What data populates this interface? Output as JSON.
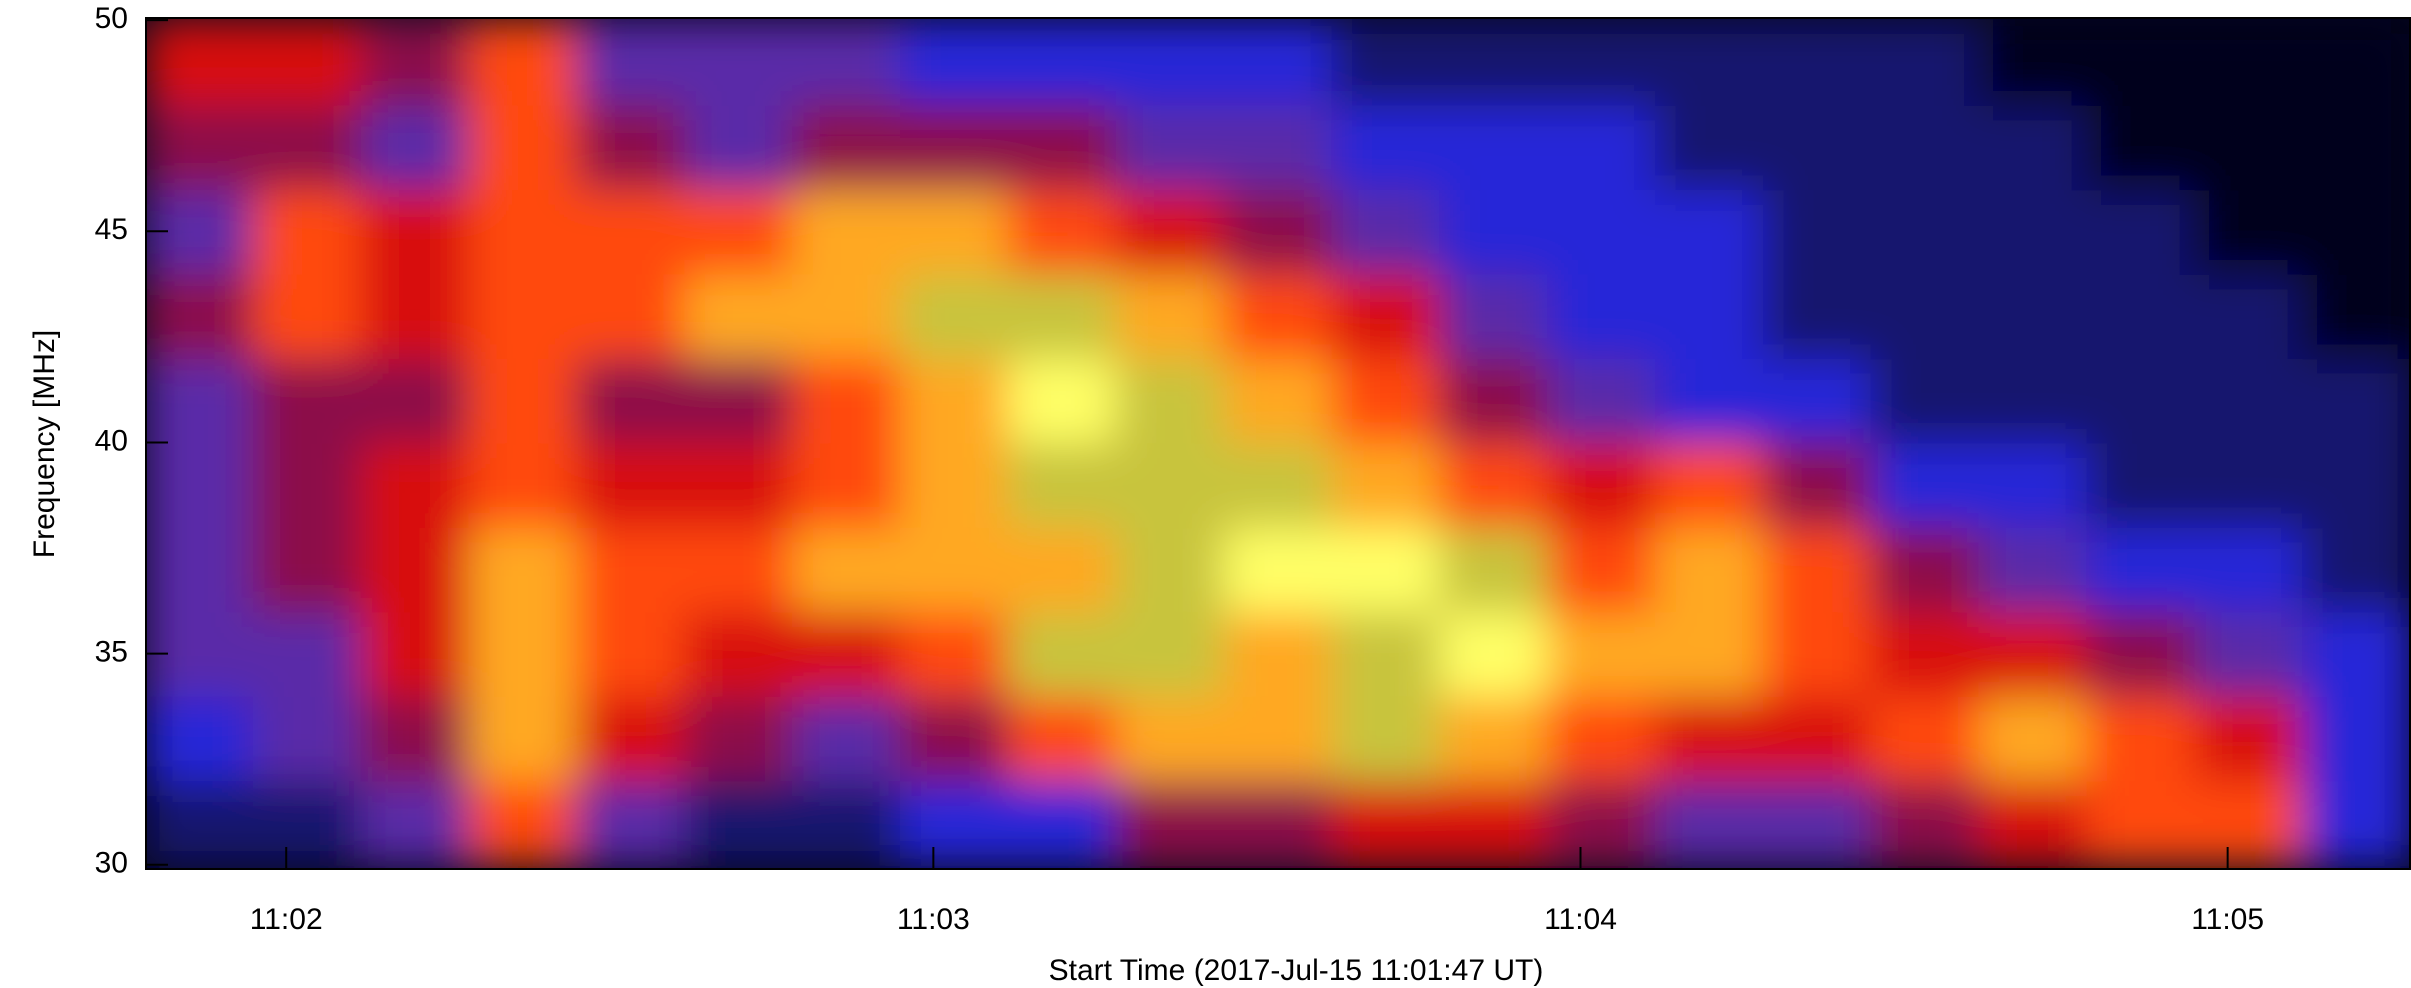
{
  "chart_data": {
    "type": "heatmap",
    "x_label": "Start Time (2017-Jul-15 11:01:47 UT)",
    "y_label": "Frequency [MHz]",
    "xlim": [
      "11:01:47",
      "11:05:17"
    ],
    "xticks": [
      {
        "value": "11:02:00",
        "label": "11:02"
      },
      {
        "value": "11:03:00",
        "label": "11:03"
      },
      {
        "value": "11:04:00",
        "label": "11:04"
      },
      {
        "value": "11:05:00",
        "label": "11:05"
      }
    ],
    "ylim": [
      29.9,
      50.05
    ],
    "yticks": [
      30,
      35,
      40,
      45,
      50
    ],
    "x": [
      "11:01:47",
      "11:01:57",
      "11:02:07",
      "11:02:17",
      "11:02:27",
      "11:02:37",
      "11:02:47",
      "11:02:57",
      "11:03:07",
      "11:03:17",
      "11:03:27",
      "11:03:37",
      "11:03:47",
      "11:03:57",
      "11:04:07",
      "11:04:17",
      "11:04:27",
      "11:04:37",
      "11:04:47",
      "11:04:57",
      "11:05:07"
    ],
    "y": [
      31,
      33,
      35,
      37,
      39,
      41,
      43,
      45,
      47,
      49
    ],
    "colormap": [
      "#04041a",
      "#12126e",
      "#2626d8",
      "#5a2aa8",
      "#8c1048",
      "#d81010",
      "#ff4a10",
      "#ffa824",
      "#c8c43c",
      "#ffff66"
    ],
    "z": [
      [
        1,
        1,
        3,
        6,
        3,
        1,
        1,
        2,
        2,
        4,
        4,
        5,
        5,
        4,
        3,
        3,
        4,
        5,
        6,
        6,
        2
      ],
      [
        2,
        3,
        4,
        7,
        5,
        4,
        3,
        4,
        6,
        7,
        7,
        8,
        7,
        6,
        5,
        5,
        6,
        7,
        6,
        5,
        2
      ],
      [
        3,
        3,
        5,
        7,
        6,
        5,
        5,
        6,
        8,
        8,
        7,
        8,
        9,
        7,
        7,
        6,
        5,
        5,
        4,
        3,
        2
      ],
      [
        3,
        4,
        5,
        7,
        6,
        6,
        7,
        7,
        7,
        8,
        9,
        9,
        8,
        6,
        7,
        6,
        4,
        3,
        2,
        2,
        1
      ],
      [
        3,
        4,
        5,
        6,
        5,
        5,
        6,
        7,
        8,
        8,
        8,
        7,
        6,
        5,
        6,
        4,
        2,
        2,
        1,
        1,
        1
      ],
      [
        3,
        4,
        4,
        6,
        4,
        4,
        6,
        7,
        9,
        8,
        7,
        6,
        4,
        3,
        2,
        2,
        1,
        1,
        1,
        1,
        1
      ],
      [
        4,
        6,
        5,
        6,
        6,
        7,
        7,
        8,
        8,
        7,
        6,
        5,
        3,
        2,
        2,
        1,
        1,
        1,
        1,
        1,
        0
      ],
      [
        3,
        6,
        5,
        6,
        6,
        6,
        7,
        7,
        6,
        5,
        4,
        3,
        2,
        2,
        2,
        1,
        1,
        1,
        1,
        0,
        0
      ],
      [
        4,
        4,
        3,
        6,
        4,
        3,
        4,
        4,
        4,
        3,
        3,
        2,
        2,
        2,
        1,
        1,
        1,
        1,
        0,
        0,
        0
      ],
      [
        5,
        5,
        4,
        6,
        3,
        3,
        3,
        2,
        2,
        2,
        2,
        1,
        1,
        1,
        1,
        1,
        1,
        0,
        0,
        0,
        0
      ]
    ]
  }
}
